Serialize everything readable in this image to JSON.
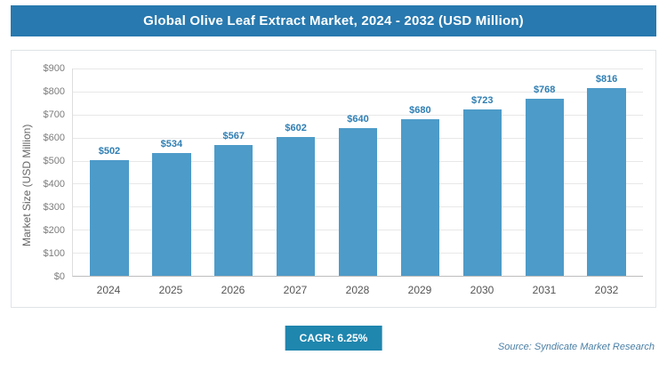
{
  "header": {
    "title": "Global Olive Leaf Extract Market, 2024 - 2032 (USD Million)"
  },
  "chart_data": {
    "type": "bar",
    "title": "Global Olive Leaf Extract Market, 2024 - 2032 (USD Million)",
    "categories": [
      "2024",
      "2025",
      "2026",
      "2027",
      "2028",
      "2029",
      "2030",
      "2031",
      "2032"
    ],
    "values": [
      502,
      534,
      567,
      602,
      640,
      680,
      723,
      768,
      816
    ],
    "value_labels": [
      "$502",
      "$534",
      "$567",
      "$602",
      "$640",
      "$680",
      "$723",
      "$768",
      "$816"
    ],
    "xlabel": "",
    "ylabel": "Market Size (USD Million)",
    "ylim": [
      0,
      900
    ],
    "ytick_step": 100,
    "ytick_prefix": "$",
    "grid": true,
    "legend": "none",
    "bar_color": "#4d9bc9",
    "value_label_color": "#2e7eb3"
  },
  "footer": {
    "cagr_label": "CAGR: 6.25%",
    "source": "Source: Syndicate Market Research"
  },
  "colors": {
    "header_bg": "#2879af",
    "badge_bg": "#1f86ae",
    "gridline": "#e8e8e8"
  }
}
